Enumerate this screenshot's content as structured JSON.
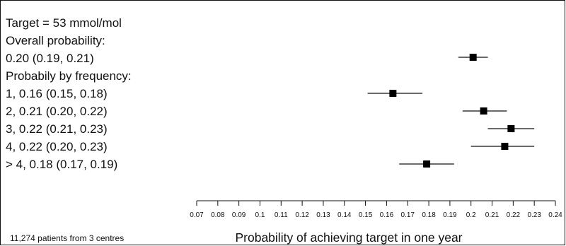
{
  "chart_data": {
    "type": "forest",
    "title": "Target = 53 mmol/mol",
    "overall": {
      "heading": "Overall probability:",
      "label": "0.20 (0.19, 0.21)",
      "estimate": 0.201,
      "ci": [
        0.194,
        0.208
      ]
    },
    "groups_heading": "Probabily by frequency:",
    "series": [
      {
        "label": "1, 0.16 (0.15, 0.18)",
        "estimate": 0.163,
        "ci": [
          0.151,
          0.177
        ]
      },
      {
        "label": "2, 0.21 (0.20, 0.22)",
        "estimate": 0.206,
        "ci": [
          0.196,
          0.217
        ]
      },
      {
        "label": "3, 0.22 (0.21, 0.23)",
        "estimate": 0.219,
        "ci": [
          0.208,
          0.23
        ]
      },
      {
        "label": "4, 0.22 (0.20, 0.23)",
        "estimate": 0.216,
        "ci": [
          0.2,
          0.23
        ]
      },
      {
        "label": "> 4, 0.18 (0.17, 0.19)",
        "estimate": 0.179,
        "ci": [
          0.166,
          0.192
        ]
      }
    ],
    "xlim": [
      0.07,
      0.24
    ],
    "xticks": [
      "0.07",
      "0.08",
      "0.09",
      "0.1",
      "0.11",
      "0.12",
      "0.13",
      "0.14",
      "0.15",
      "0.16",
      "0.17",
      "0.18",
      "0.19",
      "0.2",
      "0.21",
      "0.22",
      "0.23",
      "0.24"
    ],
    "xlabel": "Probability of achieving target in one year",
    "footnote": "11,274 patients from 3 centres"
  }
}
